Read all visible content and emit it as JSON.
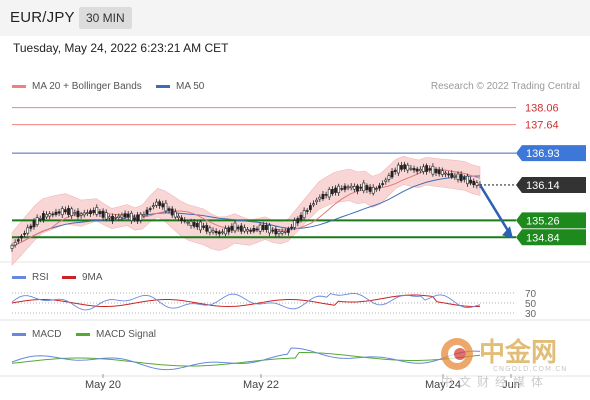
{
  "header": {
    "pair": "EUR/JPY",
    "interval": "30 MIN"
  },
  "datetime": "Tuesday, May 24, 2022 6:23:21 AM CET",
  "legend": {
    "ma20": "MA 20 + Bollinger Bands",
    "ma50": "MA 50",
    "rsi": "RSI",
    "rsi_ma": "9MA",
    "macd": "MACD",
    "macd_signal": "MACD Signal"
  },
  "credit": "Research © 2022 Trading Central",
  "colors": {
    "resistance": "#f08080",
    "ma50": "#3f6db3",
    "pivot": "#3f6db3",
    "support": "#1a7a1a",
    "bollinger_fill": "#f9d6d6",
    "candle": "#222222",
    "rsi": "#6688dd",
    "rsi_ma": "#cc2222",
    "macd": "#6688dd",
    "macd_signal": "#55aa33",
    "arrow": "#2d62b0"
  },
  "chart_data": {
    "type": "candlestick",
    "ylim": [
      134.4,
      138.3
    ],
    "x_ticks": [
      "May 20",
      "May 22",
      "May 24",
      "Jun"
    ],
    "levels": [
      {
        "value": 138.06,
        "label": "138.06",
        "kind": "resistance"
      },
      {
        "value": 137.64,
        "label": "137.64",
        "kind": "resistance"
      },
      {
        "value": 136.93,
        "label": "136.93",
        "kind": "pivot"
      },
      {
        "value": 136.14,
        "label": "136.14",
        "kind": "last"
      },
      {
        "value": 135.26,
        "label": "135.26",
        "kind": "support"
      },
      {
        "value": 134.84,
        "label": "134.84",
        "kind": "support"
      }
    ],
    "price_path": [
      134.6,
      134.8,
      135.0,
      135.2,
      135.35,
      135.4,
      135.45,
      135.5,
      135.45,
      135.4,
      135.45,
      135.5,
      135.4,
      135.3,
      135.35,
      135.4,
      135.3,
      135.35,
      135.55,
      135.7,
      135.6,
      135.45,
      135.3,
      135.2,
      135.15,
      135.1,
      135.0,
      134.95,
      135.0,
      135.1,
      135.05,
      135.0,
      135.05,
      135.1,
      135.0,
      134.95,
      135.0,
      135.2,
      135.4,
      135.6,
      135.8,
      135.9,
      136.0,
      136.05,
      136.1,
      136.05,
      136.1,
      136.0,
      136.1,
      136.3,
      136.5,
      136.6,
      136.55,
      136.5,
      136.55,
      136.5,
      136.45,
      136.4,
      136.35,
      136.3,
      136.2,
      136.14
    ],
    "rsi": {
      "levels": [
        70,
        50,
        30
      ]
    }
  }
}
